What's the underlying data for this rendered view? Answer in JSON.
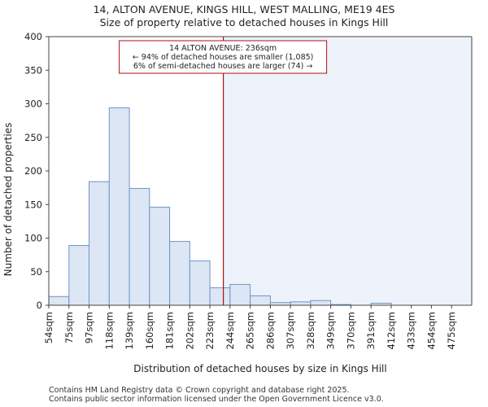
{
  "chart_data": {
    "type": "bar",
    "title": "14, ALTON AVENUE, KINGS HILL, WEST MALLING, ME19 4ES",
    "subtitle": "Size of property relative to detached houses in Kings Hill",
    "xlabel": "Distribution of detached houses by size in Kings Hill",
    "ylabel": "Number of detached properties",
    "categories": [
      "54sqm",
      "75sqm",
      "97sqm",
      "118sqm",
      "139sqm",
      "160sqm",
      "181sqm",
      "202sqm",
      "223sqm",
      "244sqm",
      "265sqm",
      "286sqm",
      "307sqm",
      "328sqm",
      "349sqm",
      "370sqm",
      "391sqm",
      "412sqm",
      "433sqm",
      "454sqm",
      "475sqm"
    ],
    "values": [
      13,
      89,
      184,
      294,
      174,
      146,
      95,
      66,
      26,
      31,
      14,
      4,
      5,
      7,
      1,
      0,
      3,
      0,
      0,
      0,
      0
    ],
    "ylim": [
      0,
      400
    ],
    "yticks": [
      0,
      50,
      100,
      150,
      200,
      250,
      300,
      350,
      400
    ],
    "marker": {
      "value_sqm": 236,
      "label_line1": "14 ALTON AVENUE: 236sqm",
      "label_line2": "← 94% of detached houses are smaller (1,085)",
      "label_line3": "6% of semi-detached houses are larger (74) →"
    },
    "colors": {
      "bar_fill": "#dce6f4",
      "bar_stroke": "#6f94c6",
      "marker_line": "#b01010",
      "shade": "#eef2fa"
    },
    "grid": false
  },
  "footer": {
    "line1": "Contains HM Land Registry data © Crown copyright and database right 2025.",
    "line2": "Contains public sector information licensed under the Open Government Licence v3.0."
  }
}
